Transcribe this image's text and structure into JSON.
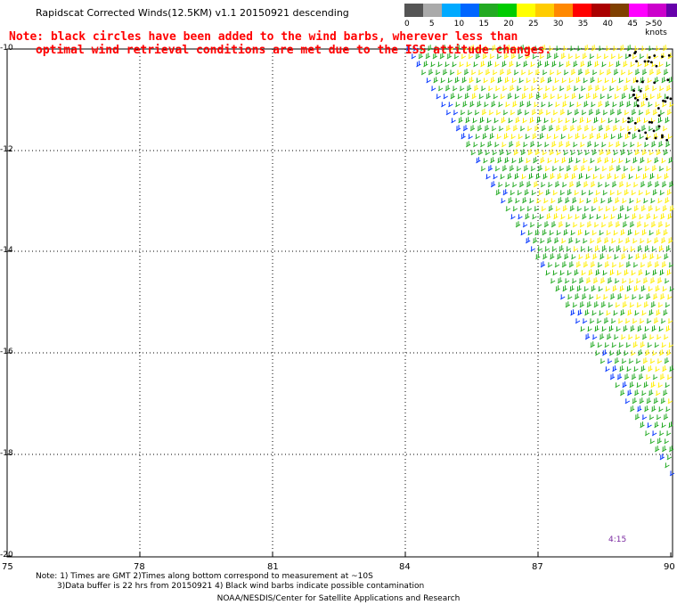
{
  "header": {
    "title": "Rapidscat Corrected Winds(12.5KM) v1.1 20150921 descending",
    "note_line1": "Note: black circles have been added to the wind barbs, wherever less than",
    "note_line2": "optimal wind retrieval conditions are met due to the ISS attitude changes."
  },
  "legend": {
    "colors": [
      "#555555",
      "#aaaaaa",
      "#00aaff",
      "#0066ff",
      "#22aa22",
      "#00cc00",
      "#ffff00",
      "#ffcc00",
      "#ff8800",
      "#ff0000",
      "#aa0000",
      "#804000",
      "#ff00ff",
      "#cc00cc",
      "#6600aa",
      "#330066"
    ],
    "labels": [
      "0",
      "5",
      "10",
      "15",
      "20",
      "25",
      "30",
      "35",
      "40",
      "45",
      ">50 knots"
    ]
  },
  "axes": {
    "y_ticks": [
      "-10",
      "-12",
      "-14",
      "-16",
      "-18",
      "-20"
    ],
    "x_ticks": [
      "75",
      "78",
      "81",
      "84",
      "87",
      "90"
    ]
  },
  "time_label": "4:15",
  "footer": {
    "line1": "Note: 1) Times are GMT 2)Times along bottom correspond to measurement at ~10S",
    "line2": "3)Data buffer is 22 hrs from 20150921 4) Black wind barbs indicate possible contamination",
    "credit": "NOAA/NESDIS/Center for Satellite Applications and Research"
  }
}
